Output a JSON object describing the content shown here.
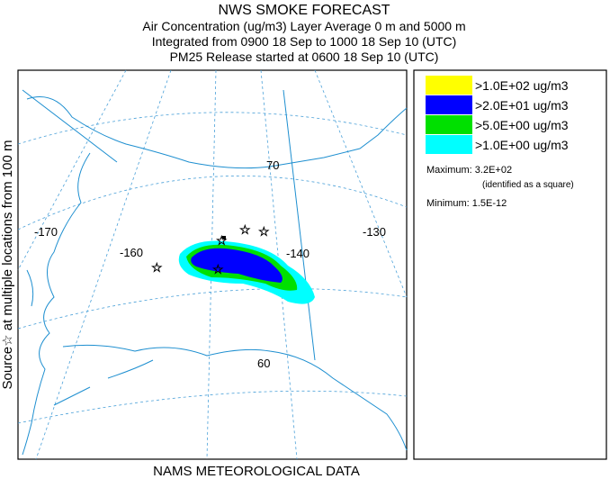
{
  "header": {
    "title": "NWS SMOKE FORECAST",
    "lines": [
      "Air Concentration (ug/m3) Layer Average    0 m and  5000 m",
      "Integrated from 0900 18 Sep to 1000 18 Sep 10 (UTC)",
      "PM25 Release started at 0600 18 Sep 10 (UTC)"
    ]
  },
  "side_label": "Source☆  at multiple locations  from  100 m",
  "footer": "NAMS METEOROLOGICAL DATA",
  "map": {
    "lon_labels": [
      "-170",
      "-160",
      "-140",
      "-130"
    ],
    "lat_labels": [
      "70",
      "60"
    ]
  },
  "legend": {
    "items": [
      {
        "label": ">1.0E+02 ug/m3",
        "color": "#ffff00"
      },
      {
        "label": ">2.0E+01 ug/m3",
        "color": "#0000ff"
      },
      {
        "label": ">5.0E+00 ug/m3",
        "color": "#00e000"
      },
      {
        "label": ">1.0E+00 ug/m3",
        "color": "#00ffff"
      }
    ],
    "maximum": "Maximum: 3.2E+02",
    "maximum_note": "(identified as a square)",
    "minimum": "Minimum: 1.5E-12"
  }
}
